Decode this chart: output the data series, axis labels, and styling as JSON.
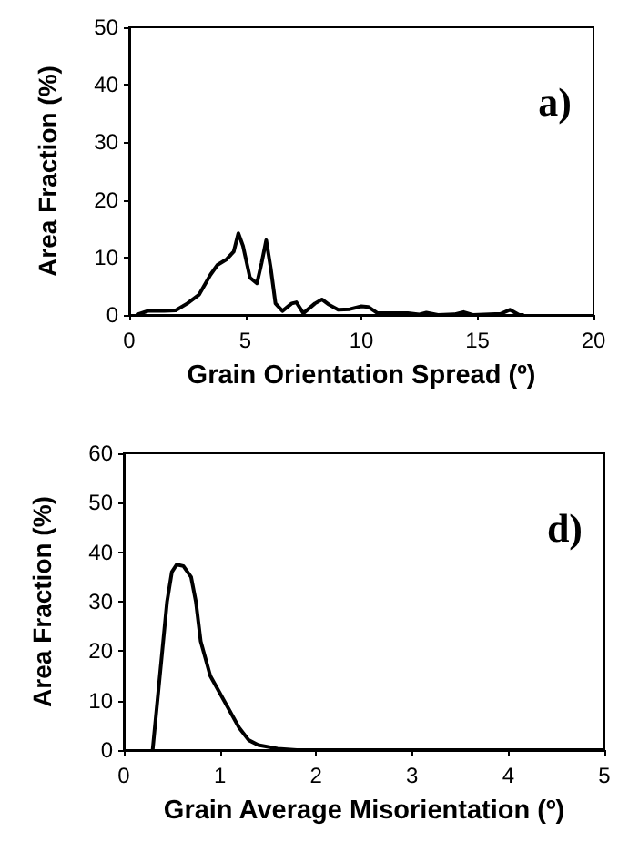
{
  "chart_data": [
    {
      "type": "line",
      "xlabel": "Grain Orientation Spread (º)",
      "ylabel": "Area Fraction (%)",
      "annotations": [
        "a)"
      ],
      "color": "#000000",
      "marker": "none",
      "line_style": "solid",
      "x": [
        0.3,
        0.8,
        1.5,
        2,
        2.5,
        3,
        3.5,
        3.8,
        4.2,
        4.5,
        4.7,
        4.9,
        5.2,
        5.5,
        5.7,
        5.9,
        6.1,
        6.3,
        6.6,
        7,
        7.2,
        7.5,
        8,
        8.3,
        8.6,
        9,
        9.5,
        10,
        10.3,
        10.7,
        11.5,
        12,
        12.5,
        12.8,
        13.3,
        14,
        14.4,
        14.8,
        16,
        16.4,
        16.8,
        17
      ],
      "values": [
        0,
        0.7,
        0.7,
        0.8,
        2,
        3.5,
        7,
        8.7,
        9.7,
        11,
        14.2,
        12,
        6.5,
        5.5,
        9,
        13,
        8,
        2,
        0.7,
        2,
        2.2,
        0.3,
        2,
        2.7,
        1.8,
        0.9,
        1,
        1.5,
        1.4,
        0.3,
        0.3,
        0.3,
        0.1,
        0.4,
        0,
        0.1,
        0.5,
        0,
        0.2,
        0.9,
        0,
        0
      ],
      "xlim": [
        0,
        20
      ],
      "xticks": [
        0,
        5,
        10,
        15,
        20
      ],
      "ylim": [
        0,
        50
      ],
      "yticks": [
        0,
        10,
        20,
        30,
        40,
        50
      ]
    },
    {
      "type": "line",
      "xlabel": "Grain Average Misorientation (º)",
      "ylabel": "Area Fraction (%)",
      "annotations": [
        "d)"
      ],
      "color": "#000000",
      "marker": "none",
      "line_style": "solid",
      "x": [
        0.3,
        0.35,
        0.4,
        0.45,
        0.5,
        0.55,
        0.62,
        0.7,
        0.75,
        0.8,
        0.9,
        1.0,
        1.1,
        1.2,
        1.3,
        1.4,
        1.6,
        1.8,
        2.5,
        5
      ],
      "values": [
        0,
        10,
        20,
        30,
        36,
        37.5,
        37.2,
        35,
        30,
        22,
        15,
        11.5,
        8,
        4.5,
        2,
        1,
        0.3,
        0,
        0,
        0
      ],
      "xlim": [
        0,
        5
      ],
      "xticks": [
        0,
        1,
        2,
        3,
        4,
        5
      ],
      "ylim": [
        0,
        60
      ],
      "yticks": [
        0,
        10,
        20,
        30,
        40,
        50,
        60
      ]
    }
  ]
}
